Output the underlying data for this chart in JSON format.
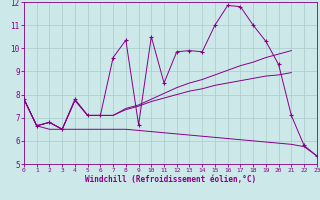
{
  "xlabel": "Windchill (Refroidissement éolien,°C)",
  "bg_color": "#cce8e8",
  "line_color": "#880088",
  "grid_color": "#aacccc",
  "xlim": [
    0,
    23
  ],
  "ylim": [
    5,
    12
  ],
  "xticks": [
    0,
    1,
    2,
    3,
    4,
    5,
    6,
    7,
    8,
    9,
    10,
    11,
    12,
    13,
    14,
    15,
    16,
    17,
    18,
    19,
    20,
    21,
    22,
    23
  ],
  "yticks": [
    5,
    6,
    7,
    8,
    9,
    10,
    11,
    12
  ],
  "series": [
    [
      7.8,
      6.65,
      6.8,
      6.5,
      7.8,
      7.1,
      7.1,
      9.6,
      10.35,
      6.7,
      10.5,
      8.5,
      9.85,
      9.9,
      9.85,
      11.0,
      11.85,
      11.8,
      11.0,
      10.3,
      9.3,
      7.1,
      5.8,
      5.35
    ],
    [
      7.8,
      6.65,
      6.8,
      6.5,
      7.75,
      7.1,
      7.1,
      7.1,
      7.4,
      7.55,
      7.8,
      8.05,
      8.3,
      8.5,
      8.65,
      8.85,
      9.05,
      9.25,
      9.4,
      9.6,
      9.75,
      9.9,
      null,
      null
    ],
    [
      7.8,
      6.65,
      6.8,
      6.5,
      7.75,
      7.1,
      7.1,
      7.1,
      7.35,
      7.5,
      7.7,
      7.85,
      8.0,
      8.15,
      8.25,
      8.4,
      8.5,
      8.6,
      8.7,
      8.8,
      8.85,
      8.95,
      null,
      null
    ],
    [
      7.8,
      6.65,
      6.5,
      6.5,
      6.5,
      6.5,
      6.5,
      6.5,
      6.5,
      6.45,
      6.4,
      6.35,
      6.3,
      6.25,
      6.2,
      6.15,
      6.1,
      6.05,
      6.0,
      5.95,
      5.9,
      5.85,
      5.75,
      5.35
    ]
  ]
}
